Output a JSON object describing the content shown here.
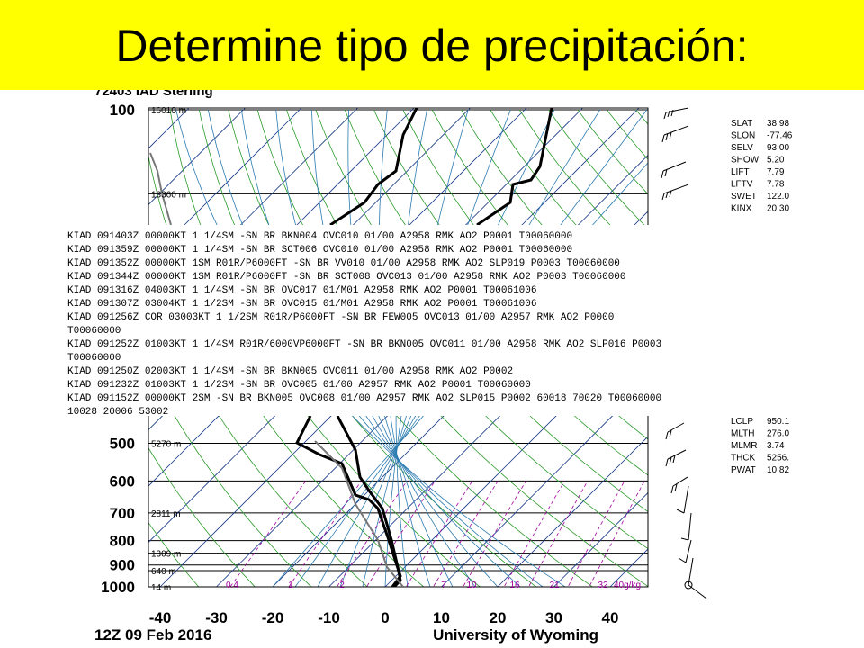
{
  "title": "Determine tipo de precipitación:",
  "diagram": {
    "station": "72403 IAD Sterling",
    "pressure_labels": [
      100,
      500,
      600,
      700,
      800,
      900,
      1000
    ],
    "height_labels": [
      "16010 m",
      "13360 m",
      "5270 m",
      "2811 m",
      "1309 m",
      "640 m",
      "14 m"
    ],
    "mixing_ratio_labels": [
      "0.4",
      "1",
      "2",
      "7",
      "10",
      "16",
      "21",
      "32",
      "40g/kg"
    ],
    "temperature_labels": [
      -40,
      -30,
      -20,
      -10,
      0,
      10,
      20,
      30,
      40
    ],
    "indices_top": [
      {
        "name": "SLAT",
        "value": "38.98"
      },
      {
        "name": "SLON",
        "value": "-77.46"
      },
      {
        "name": "SELV",
        "value": "93.00"
      },
      {
        "name": "SHOW",
        "value": "5.20"
      },
      {
        "name": "LIFT",
        "value": "7.79"
      },
      {
        "name": "LFTV",
        "value": "7.78"
      },
      {
        "name": "SWET",
        "value": "122.0"
      },
      {
        "name": "KINX",
        "value": "20.30"
      }
    ],
    "indices_bottom": [
      {
        "name": "LCLP",
        "value": "950.1"
      },
      {
        "name": "MLTH",
        "value": "276.0"
      },
      {
        "name": "MLMR",
        "value": "3.74"
      },
      {
        "name": "THCK",
        "value": "5256."
      },
      {
        "name": "PWAT",
        "value": "10.82"
      }
    ],
    "footer_left": "12Z 09 Feb 2016",
    "footer_right": "University of Wyoming"
  },
  "metar": [
    "KIAD 091403Z 00000KT 1 1/4SM -SN BR BKN004 OVC010 01/00 A2958 RMK AO2 P0001 T00060000",
    "KIAD 091359Z 00000KT 1 1/4SM -SN BR SCT006 OVC010 01/00 A2958 RMK AO2 P0001 T00060000",
    "KIAD 091352Z 00000KT 1SM R01R/P6000FT -SN BR VV010 01/00 A2958 RMK AO2 SLP019 P0003 T00060000",
    "KIAD 091344Z 00000KT 1SM R01R/P6000FT -SN BR SCT008 OVC013 01/00 A2958 RMK AO2 P0003 T00060000",
    "KIAD 091316Z 04003KT 1 1/4SM -SN BR OVC017 01/M01 A2958 RMK AO2 P0001 T00061006",
    "KIAD 091307Z 03004KT 1 1/2SM -SN BR OVC015 01/M01 A2958 RMK AO2 P0001 T00061006",
    "KIAD 091256Z COR 03003KT 1 1/2SM R01R/P6000FT -SN BR FEW005 OVC013 01/00 A2957 RMK AO2 P0000",
    "T00060000",
    "KIAD 091252Z 01003KT 1 1/4SM R01R/6000VP6000FT -SN BR BKN005 OVC011 01/00 A2958 RMK AO2 SLP016 P0003",
    "T00060000",
    "KIAD 091250Z 02003KT 1 1/4SM -SN BR BKN005 OVC011 01/00 A2958 RMK AO2 P0002",
    "KIAD 091232Z 01003KT 1 1/2SM -SN BR OVC005 01/00 A2957 RMK AO2 P0001 T00060000",
    "KIAD 091152Z 00000KT 2SM -SN BR BKN005 OVC008 01/00 A2957 RMK AO2 SLP015 P0002 60018 70020 T00060000",
    "10028 20006 53002"
  ]
}
